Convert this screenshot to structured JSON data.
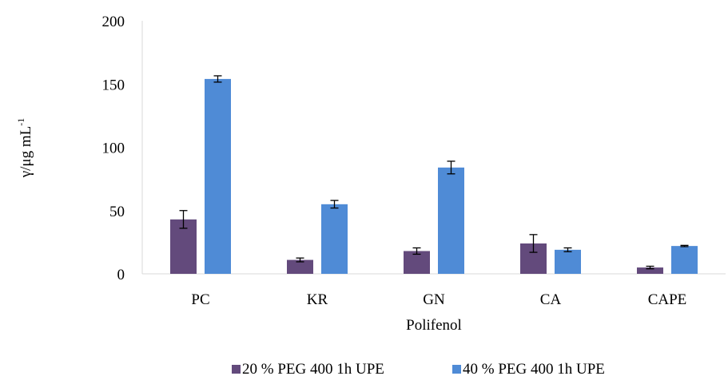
{
  "chart_data": {
    "type": "bar",
    "title": "",
    "xlabel": "Polifenol",
    "ylabel_main": "γ/μg mL",
    "ylabel_sup": "-1",
    "ylim": [
      0,
      200
    ],
    "yticks": [
      0,
      50,
      100,
      150,
      200
    ],
    "grid": false,
    "legend_position": "bottom",
    "categories": [
      "PC",
      "KR",
      "GN",
      "CA",
      "CAPE"
    ],
    "series": [
      {
        "name": "20 % PEG 400 1h UPE",
        "color": "#634a7c",
        "values": [
          43,
          11,
          18,
          24,
          5
        ],
        "errors": [
          7,
          1.5,
          2.5,
          7,
          1
        ]
      },
      {
        "name": "40 % PEG  400 1h UPE",
        "color": "#4f8bd6",
        "values": [
          154,
          55,
          84,
          19,
          22
        ],
        "errors": [
          2.5,
          3,
          5,
          1.5,
          0.5
        ]
      }
    ]
  }
}
